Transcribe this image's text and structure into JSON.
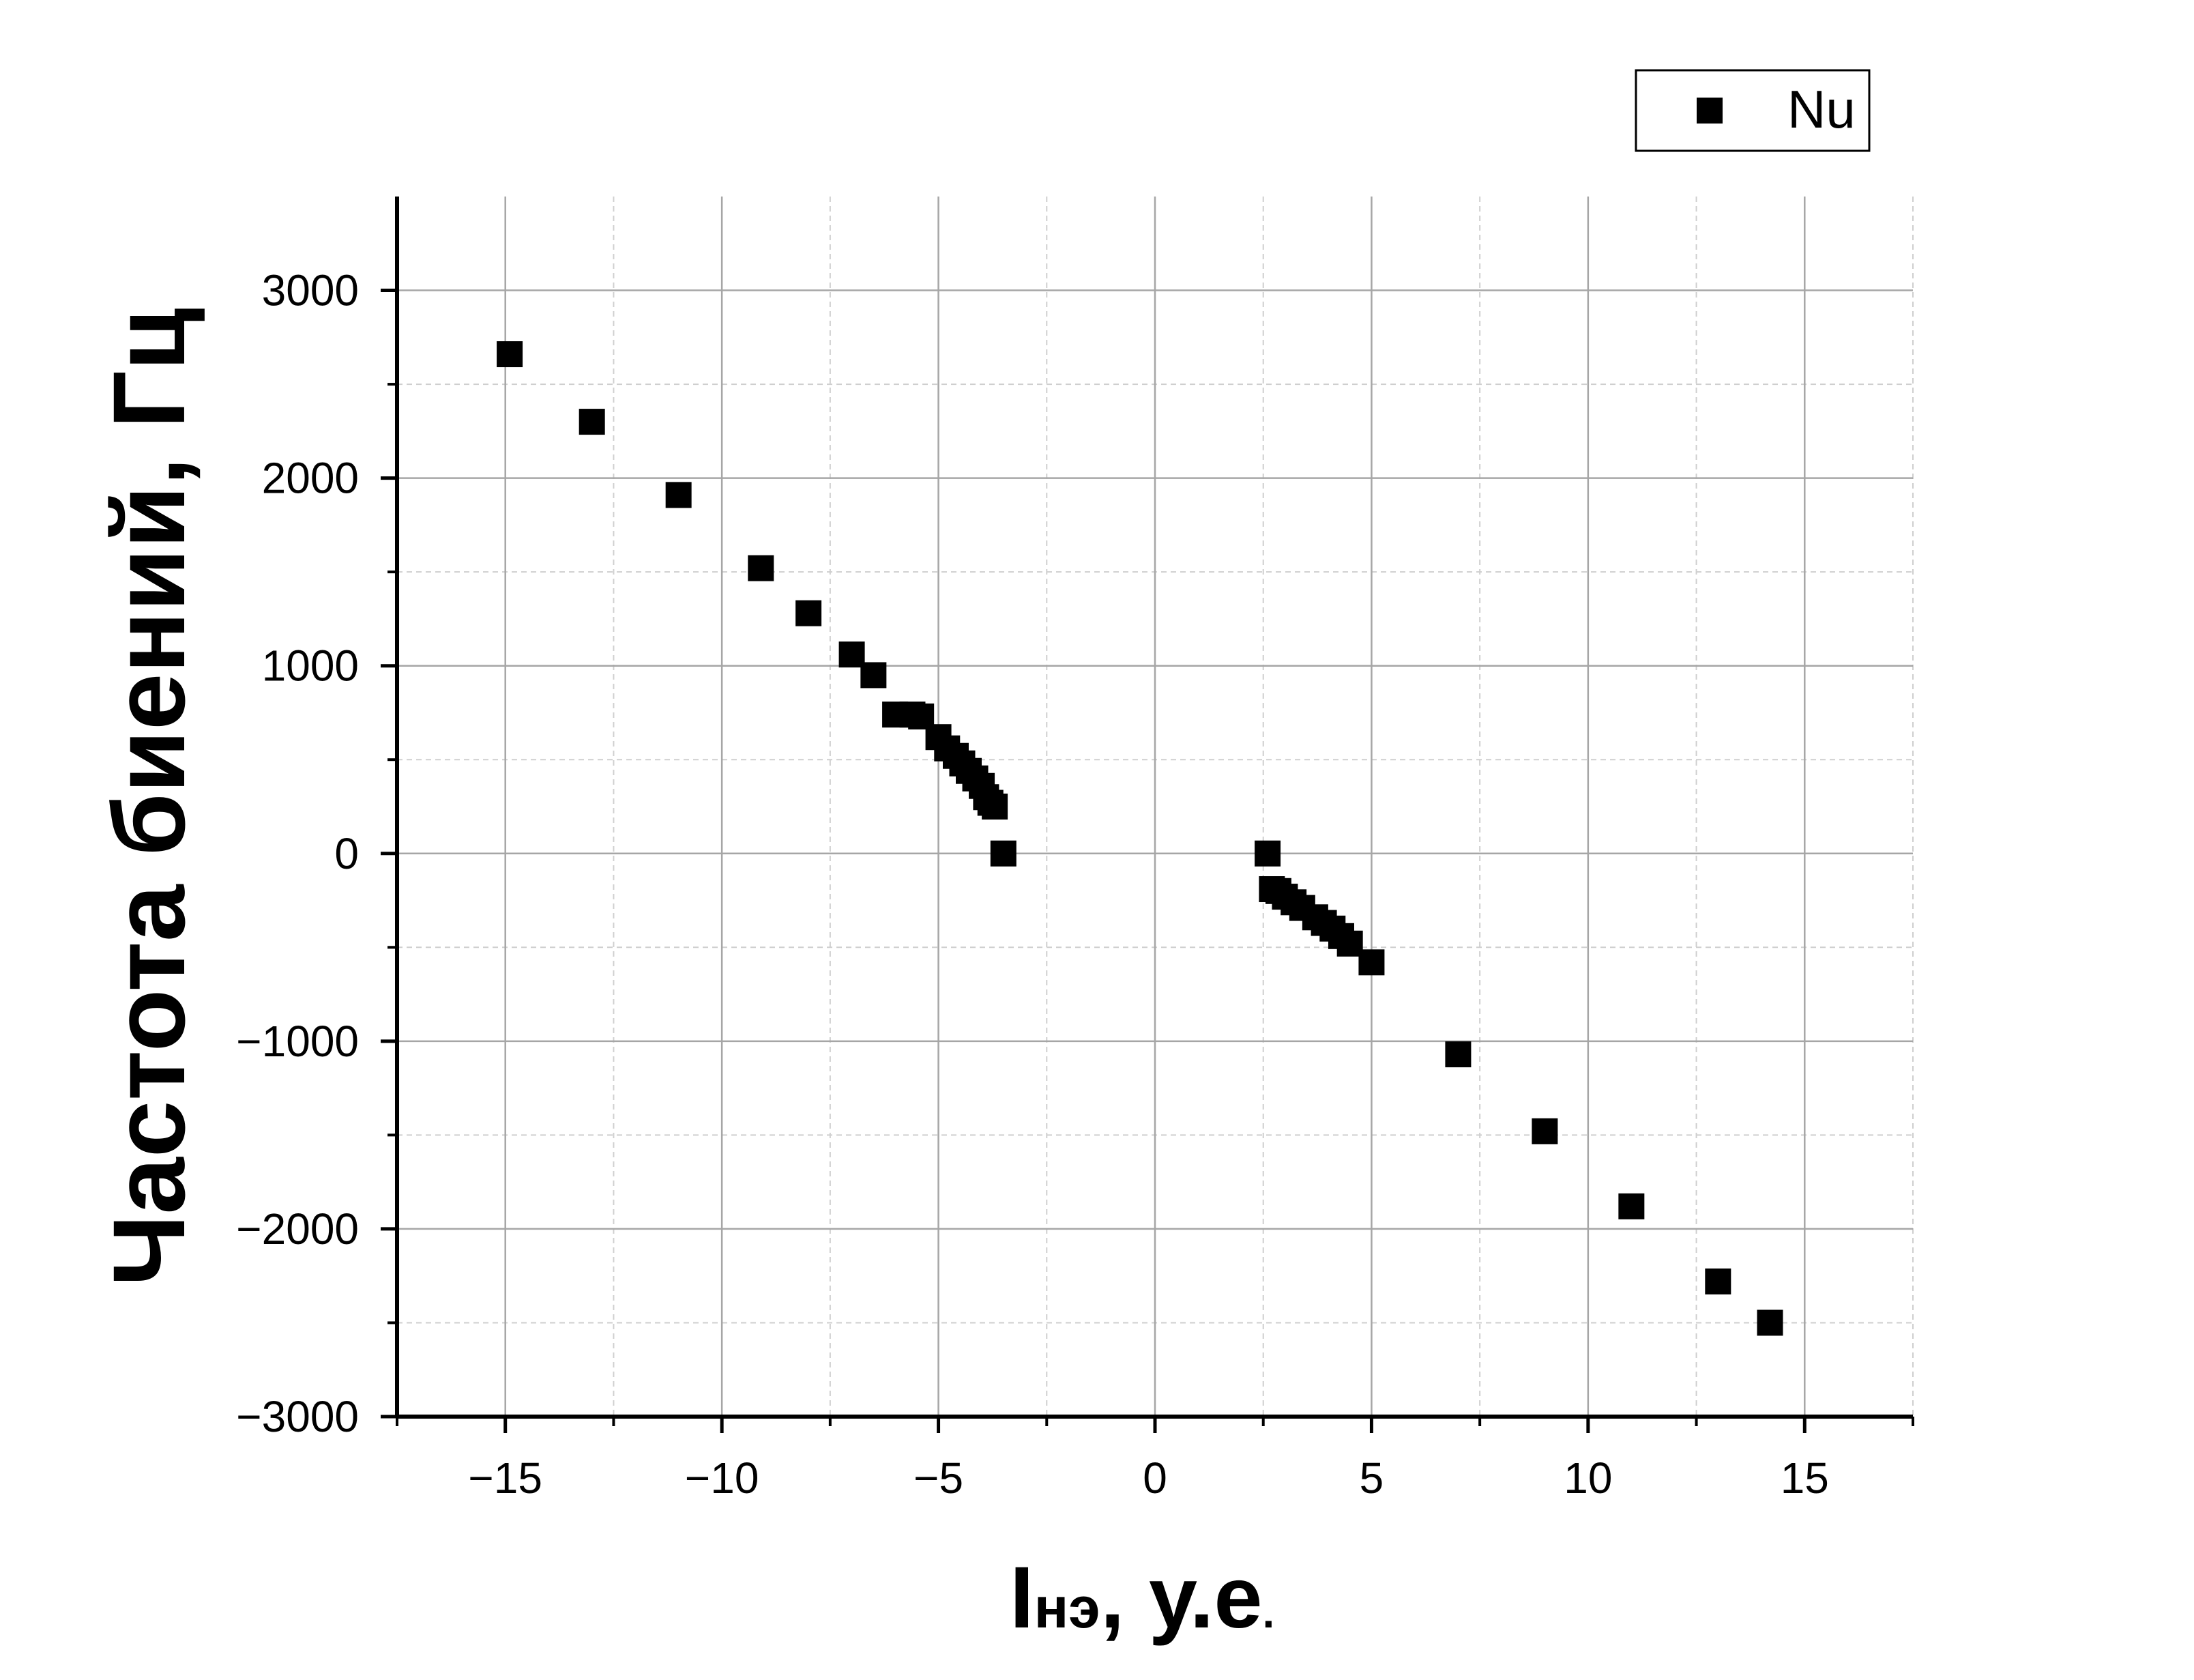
{
  "chart_data": {
    "type": "scatter",
    "title": "",
    "xlabel_main": "I",
    "xlabel_sub": "нэ",
    "xlabel_tail": ", у.е",
    "xlabel_dot": ".",
    "ylabel": "Частота биений, Гц",
    "xlim": [
      -17.5,
      17.5
    ],
    "ylim": [
      -3000,
      3500
    ],
    "x_major_ticks": [
      -15,
      -10,
      -5,
      0,
      5,
      10,
      15
    ],
    "x_tick_labels": [
      "−15",
      "−10",
      "−5",
      "0",
      "5",
      "10",
      "15"
    ],
    "x_minor_ticks": [
      -17.5,
      -12.5,
      -7.5,
      -2.5,
      2.5,
      7.5,
      12.5,
      17.5
    ],
    "y_major_ticks": [
      -3000,
      -2000,
      -1000,
      0,
      1000,
      2000,
      3000
    ],
    "y_tick_labels": [
      "−3000",
      "−2000",
      "−1000",
      "0",
      "1000",
      "2000",
      "3000"
    ],
    "y_minor_ticks": [
      -2500,
      -1500,
      -500,
      500,
      1500,
      2500
    ],
    "grid": true,
    "legend": {
      "position": "top-right",
      "label": "Nu"
    },
    "series": [
      {
        "name": "Nu",
        "marker": "square",
        "color": "#000000",
        "points": [
          [
            -14.9,
            2660
          ],
          [
            -13.0,
            2300
          ],
          [
            -11.0,
            1910
          ],
          [
            -9.1,
            1520
          ],
          [
            -8.0,
            1280
          ],
          [
            -7.0,
            1060
          ],
          [
            -6.5,
            950
          ],
          [
            -6.0,
            740
          ],
          [
            -5.6,
            740
          ],
          [
            -5.4,
            730
          ],
          [
            -5.0,
            620
          ],
          [
            -4.8,
            560
          ],
          [
            -4.6,
            520
          ],
          [
            -4.45,
            480
          ],
          [
            -4.3,
            440
          ],
          [
            -4.15,
            400
          ],
          [
            -4.0,
            360
          ],
          [
            -3.9,
            300
          ],
          [
            -3.8,
            270
          ],
          [
            -3.7,
            250
          ],
          [
            -3.5,
            0
          ],
          [
            2.6,
            0
          ],
          [
            2.7,
            -190
          ],
          [
            2.85,
            -200
          ],
          [
            3.0,
            -230
          ],
          [
            3.2,
            -260
          ],
          [
            3.4,
            -290
          ],
          [
            3.7,
            -340
          ],
          [
            3.9,
            -370
          ],
          [
            4.1,
            -400
          ],
          [
            4.3,
            -440
          ],
          [
            4.5,
            -480
          ],
          [
            5.0,
            -580
          ],
          [
            7.0,
            -1070
          ],
          [
            9.0,
            -1480
          ],
          [
            11.0,
            -1880
          ],
          [
            13.0,
            -2280
          ],
          [
            14.2,
            -2500
          ]
        ]
      }
    ]
  }
}
